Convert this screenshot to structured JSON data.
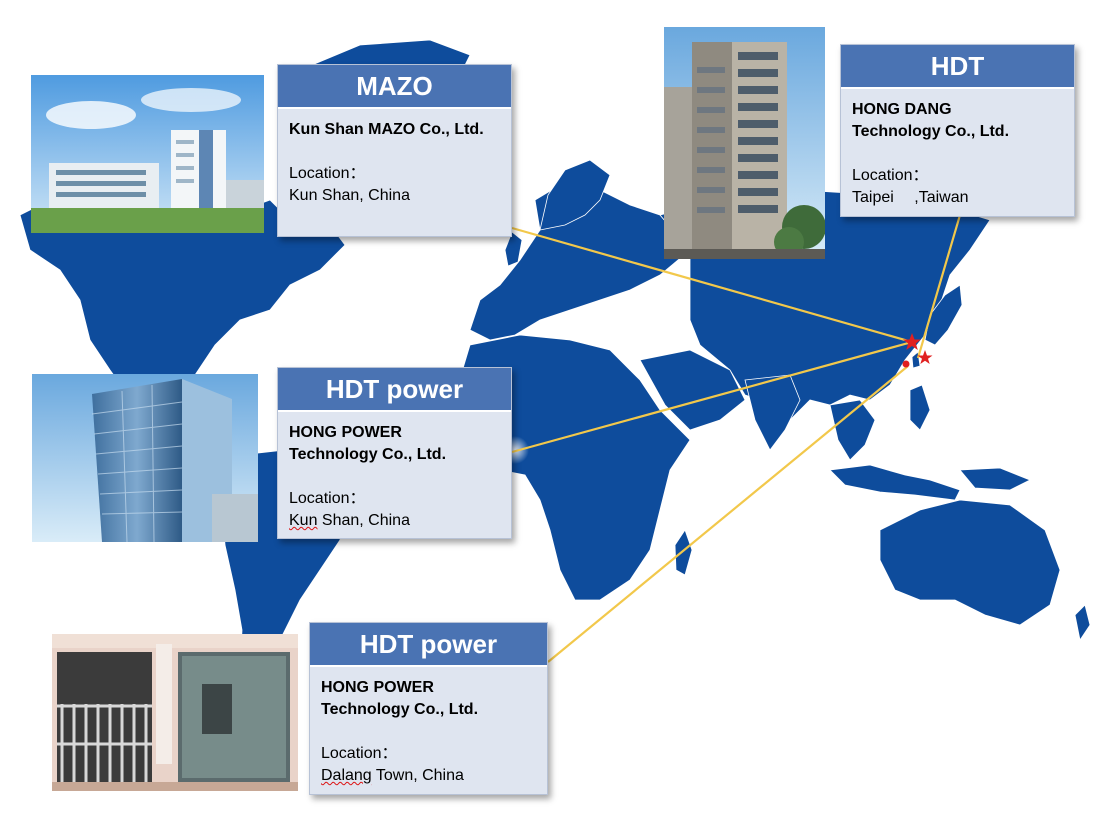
{
  "colors": {
    "ocean": "#ffffff",
    "land": "#0e4c9c",
    "header": "#4a73b3",
    "card": "#dfe5f0",
    "connector": "#f2c84b",
    "marker": "#e02020"
  },
  "cards": {
    "mazo": {
      "title": "MAZO",
      "company": "Kun Shan MAZO Co., Ltd.",
      "location_label": "Location：",
      "location": "Kun Shan, China"
    },
    "hdt": {
      "title": "HDT",
      "company_line1": "HONG DANG",
      "company_line2": "Technology Co., Ltd.",
      "location_label": "Location：",
      "location": "Taipei 　,Taiwan"
    },
    "hdt_power_1": {
      "title": "HDT power",
      "company_line1": "HONG POWER",
      "company_line2": "Technology Co., Ltd.",
      "location_label": "Location：",
      "location_prefix": "Kun",
      "location_rest": " Shan, China"
    },
    "hdt_power_2": {
      "title": "HDT power",
      "company_line1": "HONG POWER",
      "company_line2": "Technology Co., Ltd.",
      "location_label": "Location：",
      "location_prefix": "Dalang",
      "location_rest": " Town, China"
    }
  },
  "markers": [
    {
      "name": "kunshan-marker-icon",
      "icon": "star"
    },
    {
      "name": "taipei-marker-icon",
      "icon": "star"
    },
    {
      "name": "dalang-marker-icon",
      "icon": "dot"
    }
  ]
}
